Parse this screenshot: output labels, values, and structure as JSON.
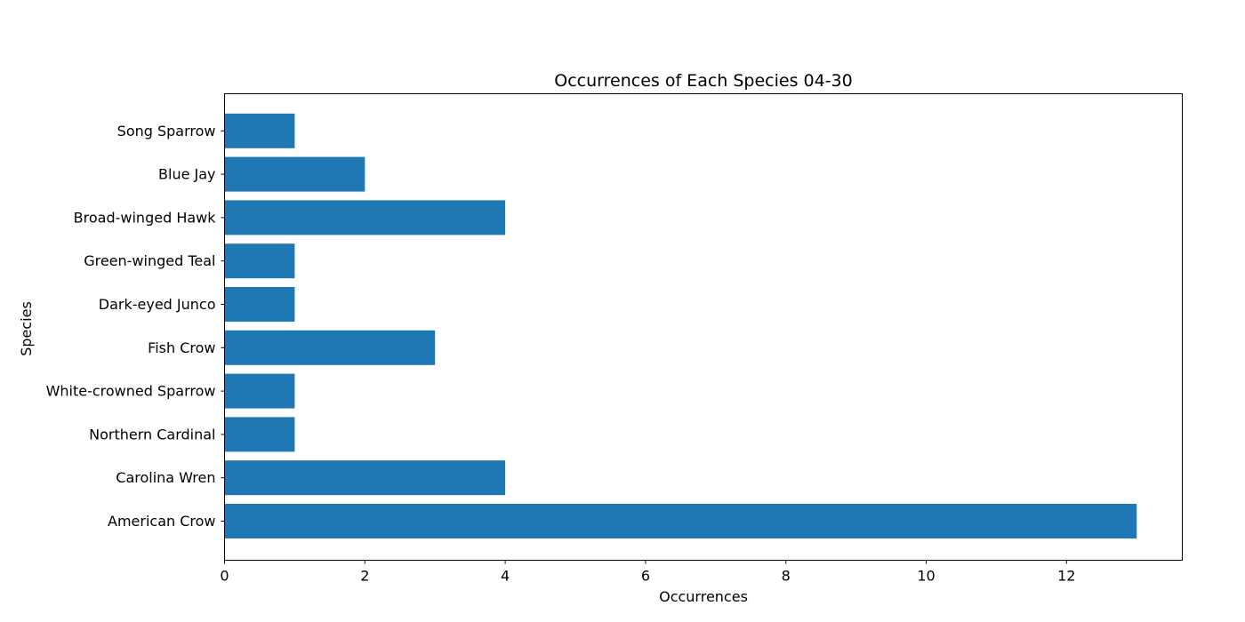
{
  "chart_data": {
    "type": "bar",
    "orientation": "horizontal",
    "title": "Occurrences of Each Species 04-30",
    "xlabel": "Occurrences",
    "ylabel": "Species",
    "categories": [
      "American Crow",
      "Carolina Wren",
      "Northern Cardinal",
      "White-crowned Sparrow",
      "Fish Crow",
      "Dark-eyed Junco",
      "Green-winged Teal",
      "Broad-winged Hawk",
      "Blue Jay",
      "Song Sparrow"
    ],
    "values": [
      13,
      4,
      1,
      1,
      3,
      1,
      1,
      4,
      2,
      1
    ],
    "xlim": [
      0,
      13.65
    ],
    "xticks": [
      0,
      2,
      4,
      6,
      8,
      10,
      12
    ],
    "grid": false,
    "legend": "none",
    "bar_color": "#1f77b4"
  }
}
